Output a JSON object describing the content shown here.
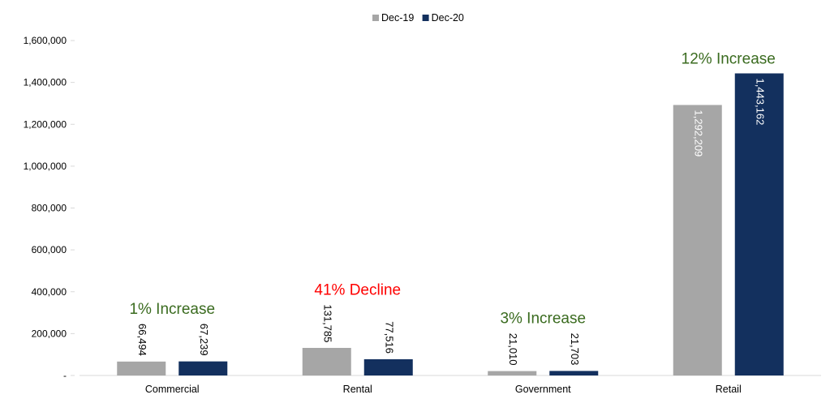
{
  "chart_data": {
    "type": "bar",
    "categories": [
      "Commercial",
      "Rental",
      "Government",
      "Retail"
    ],
    "series": [
      {
        "name": "Dec-19",
        "color": "#a6a6a6",
        "values": [
          66494,
          131785,
          21010,
          1292209
        ],
        "labels": [
          "66,494",
          "131,785",
          "21,010",
          "1,292,209"
        ]
      },
      {
        "name": "Dec-20",
        "color": "#13305e",
        "values": [
          67239,
          77516,
          21703,
          1443162
        ],
        "labels": [
          "67,239",
          "77,516",
          "21,703",
          "1,443,162"
        ]
      }
    ],
    "ylim": [
      0,
      1600000
    ],
    "yticks": [
      0,
      200000,
      400000,
      600000,
      800000,
      1000000,
      1200000,
      1400000,
      1600000
    ],
    "ytick_labels": [
      "-",
      "200,000",
      "400,000",
      "600,000",
      "800,000",
      "1,000,000",
      "1,200,000",
      "1,400,000",
      "1,600,000"
    ],
    "legend_position": "top-center",
    "grid": false,
    "annotations": [
      {
        "text": "1% Increase",
        "category": "Commercial",
        "color": "#3a6b1f"
      },
      {
        "text": "41% Decline",
        "category": "Rental",
        "color": "#ff0000"
      },
      {
        "text": "3% Increase",
        "category": "Government",
        "color": "#3a6b1f"
      },
      {
        "text": "12% Increase",
        "category": "Retail",
        "color": "#3a6b1f"
      }
    ]
  }
}
